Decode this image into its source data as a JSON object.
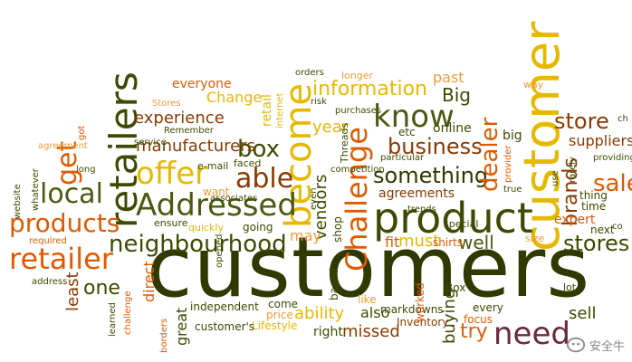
{
  "colors": {
    "olive": "#3d4a00",
    "orange": "#e05a00",
    "yellow": "#e6b800",
    "brown": "#8a3a00",
    "green": "#4a5a10",
    "light_orange": "#f29a38",
    "dark_olive": "#2f3900",
    "plum": "#6a2a3a"
  },
  "words": [
    {
      "text": "customers",
      "color": "dark_olive",
      "rot": false
    },
    {
      "text": "customer",
      "color": "yellow",
      "rot": true
    },
    {
      "text": "product",
      "color": "olive",
      "rot": false
    },
    {
      "text": "retailers",
      "color": "olive",
      "rot": true
    },
    {
      "text": "become",
      "color": "yellow",
      "rot": true
    },
    {
      "text": "Addressed",
      "color": "green",
      "rot": false
    },
    {
      "text": "retailer",
      "color": "orange",
      "rot": false
    },
    {
      "text": "neighbourhood",
      "color": "olive",
      "rot": false
    },
    {
      "text": "offer",
      "color": "yellow",
      "rot": false
    },
    {
      "text": "know",
      "color": "green",
      "rot": false
    },
    {
      "text": "Challenge",
      "color": "orange",
      "rot": true
    },
    {
      "text": "need",
      "color": "plum",
      "rot": false
    },
    {
      "text": "products",
      "color": "orange",
      "rot": false
    },
    {
      "text": "local",
      "color": "green",
      "rot": false
    },
    {
      "text": "able",
      "color": "brown",
      "rot": false
    },
    {
      "text": "get",
      "color": "orange",
      "rot": true
    },
    {
      "text": "box",
      "color": "olive",
      "rot": false
    },
    {
      "text": "information",
      "color": "yellow",
      "rot": false
    },
    {
      "text": "business",
      "color": "brown",
      "rot": false
    },
    {
      "text": "something",
      "color": "dark_olive",
      "rot": false
    },
    {
      "text": "dealer",
      "color": "orange",
      "rot": true
    },
    {
      "text": "store",
      "color": "brown",
      "rot": false
    },
    {
      "text": "stores",
      "color": "olive",
      "rot": false
    },
    {
      "text": "sale",
      "color": "orange",
      "rot": false
    },
    {
      "text": "brands",
      "color": "brown",
      "rot": true
    },
    {
      "text": "experience",
      "color": "brown",
      "rot": false
    },
    {
      "text": "manufacturers",
      "color": "brown",
      "rot": false
    },
    {
      "text": "vendors",
      "color": "olive",
      "rot": true
    },
    {
      "text": "Big",
      "color": "olive",
      "rot": false
    },
    {
      "text": "must",
      "color": "yellow",
      "rot": false
    },
    {
      "text": "well",
      "color": "green",
      "rot": false
    },
    {
      "text": "one",
      "color": "olive",
      "rot": false
    },
    {
      "text": "ability",
      "color": "yellow",
      "rot": false
    },
    {
      "text": "try",
      "color": "orange",
      "rot": false
    },
    {
      "text": "sell",
      "color": "olive",
      "rot": false
    },
    {
      "text": "direct",
      "color": "orange",
      "rot": true
    },
    {
      "text": "least",
      "color": "brown",
      "rot": true
    },
    {
      "text": "also",
      "color": "olive",
      "rot": false
    },
    {
      "text": "missed",
      "color": "brown",
      "rot": false
    },
    {
      "text": "agreements",
      "color": "brown",
      "rot": false
    },
    {
      "text": "everyone",
      "color": "orange",
      "rot": false
    },
    {
      "text": "Change",
      "color": "yellow",
      "rot": false
    },
    {
      "text": "year",
      "color": "yellow",
      "rot": false
    },
    {
      "text": "past",
      "color": "light_orange",
      "rot": false
    },
    {
      "text": "online",
      "color": "olive",
      "rot": false
    },
    {
      "text": "etc",
      "color": "olive",
      "rot": false
    },
    {
      "text": "buying",
      "color": "olive",
      "rot": true
    },
    {
      "text": "fit",
      "color": "orange",
      "rot": false
    },
    {
      "text": "shirts",
      "color": "orange",
      "rot": false
    },
    {
      "text": "great",
      "color": "olive",
      "rot": true
    },
    {
      "text": "may",
      "color": "light_orange",
      "rot": false
    },
    {
      "text": "retail",
      "color": "yellow",
      "rot": true
    },
    {
      "text": "expert",
      "color": "orange",
      "rot": false
    },
    {
      "text": "suppliers",
      "color": "brown",
      "rot": false
    },
    {
      "text": "next",
      "color": "olive",
      "rot": false
    },
    {
      "text": "time",
      "color": "olive",
      "rot": false
    },
    {
      "text": "thing",
      "color": "olive",
      "rot": false
    },
    {
      "text": "big",
      "color": "olive",
      "rot": false
    },
    {
      "text": "right",
      "color": "olive",
      "rot": false
    },
    {
      "text": "Inventory",
      "color": "brown",
      "rot": false
    },
    {
      "text": "markdowns",
      "color": "olive",
      "rot": false
    },
    {
      "text": "every",
      "color": "olive",
      "rot": false
    },
    {
      "text": "focus",
      "color": "orange",
      "rot": false
    },
    {
      "text": "worked",
      "color": "orange",
      "rot": true
    },
    {
      "text": "Box",
      "color": "olive",
      "rot": false
    },
    {
      "text": "like",
      "color": "light_orange",
      "rot": false
    },
    {
      "text": "based",
      "color": "olive",
      "rot": true
    },
    {
      "text": "come",
      "color": "olive",
      "rot": false
    },
    {
      "text": "price",
      "color": "light_orange",
      "rot": false
    },
    {
      "text": "Lifestyle",
      "color": "yellow",
      "rot": false
    },
    {
      "text": "customer's",
      "color": "olive",
      "rot": false
    },
    {
      "text": "independent",
      "color": "olive",
      "rot": false
    },
    {
      "text": "going",
      "color": "olive",
      "rot": false
    },
    {
      "text": "quickly",
      "color": "yellow",
      "rot": false
    },
    {
      "text": "ensure",
      "color": "olive",
      "rot": false
    },
    {
      "text": "associates",
      "color": "olive",
      "rot": false
    },
    {
      "text": "want",
      "color": "light_orange",
      "rot": false
    },
    {
      "text": "e-mail",
      "color": "olive",
      "rot": false
    },
    {
      "text": "faced",
      "color": "olive",
      "rot": false
    },
    {
      "text": "Threads",
      "color": "olive",
      "rot": true
    },
    {
      "text": "competition",
      "color": "olive",
      "rot": false
    },
    {
      "text": "even",
      "color": "olive",
      "rot": true
    },
    {
      "text": "shop",
      "color": "olive",
      "rot": true
    },
    {
      "text": "special",
      "color": "olive",
      "rot": false
    },
    {
      "text": "trends",
      "color": "olive",
      "rot": false
    },
    {
      "text": "particular",
      "color": "olive",
      "rot": false
    },
    {
      "text": "purchases",
      "color": "olive",
      "rot": false
    },
    {
      "text": "risk",
      "color": "olive",
      "rot": false
    },
    {
      "text": "orders",
      "color": "olive",
      "rot": false
    },
    {
      "text": "longer",
      "color": "light_orange",
      "rot": false
    },
    {
      "text": "way",
      "color": "light_orange",
      "rot": false
    },
    {
      "text": "Stores",
      "color": "light_orange",
      "rot": false
    },
    {
      "text": "Remember",
      "color": "olive",
      "rot": false
    },
    {
      "text": "service",
      "color": "olive",
      "rot": false
    },
    {
      "text": "agreement",
      "color": "light_orange",
      "rot": false
    },
    {
      "text": "got",
      "color": "orange",
      "rot": true
    },
    {
      "text": "long",
      "color": "olive",
      "rot": false
    },
    {
      "text": "whatever",
      "color": "olive",
      "rot": true
    },
    {
      "text": "website",
      "color": "olive",
      "rot": true
    },
    {
      "text": "required",
      "color": "orange",
      "rot": false
    },
    {
      "text": "address",
      "color": "olive",
      "rot": false
    },
    {
      "text": "learned",
      "color": "olive",
      "rot": true
    },
    {
      "text": "challenge",
      "color": "orange",
      "rot": true
    },
    {
      "text": "borders",
      "color": "orange",
      "rot": true
    },
    {
      "text": "opened",
      "color": "olive",
      "rot": true
    },
    {
      "text": "internet",
      "color": "yellow",
      "rot": true
    },
    {
      "text": "true",
      "color": "olive",
      "rot": false
    },
    {
      "text": "size",
      "color": "light_orange",
      "rot": false
    },
    {
      "text": "provider",
      "color": "orange",
      "rot": true
    },
    {
      "text": "use",
      "color": "olive",
      "rot": true
    },
    {
      "text": "rarely",
      "color": "olive",
      "rot": true
    },
    {
      "text": "providing",
      "color": "olive",
      "rot": false
    },
    {
      "text": "lot",
      "color": "olive",
      "rot": false
    },
    {
      "text": "co",
      "color": "olive",
      "rot": false
    },
    {
      "text": "ch",
      "color": "olive",
      "rot": false
    }
  ],
  "watermark": {
    "text": "安全牛"
  }
}
